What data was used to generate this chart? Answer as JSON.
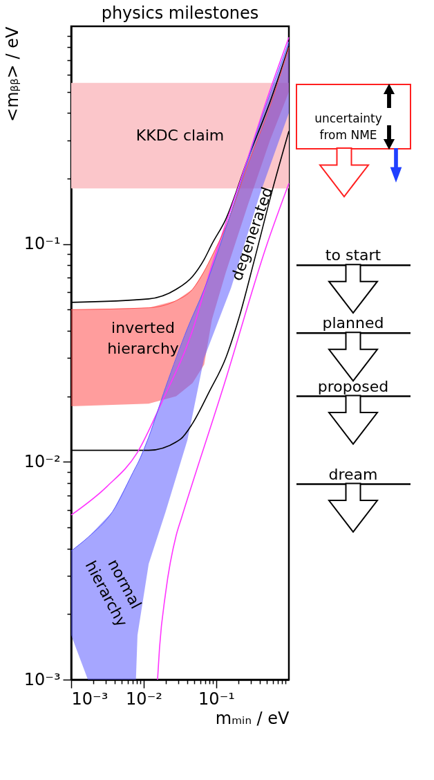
{
  "chart_data": {
    "type": "line",
    "title": "physics milestones",
    "xlabel": "mₘᵢₙ / eV",
    "ylabel": "<mᵦᵦ> / eV",
    "log": "xy",
    "grid": false,
    "xlim": [
      0.001,
      1
    ],
    "ylim": [
      0.001,
      1
    ],
    "xticks": [
      {
        "value": 0.001,
        "label": "10⁻³"
      },
      {
        "value": 0.002,
        "label": null
      },
      {
        "value": 0.003,
        "label": null
      },
      {
        "value": 0.004,
        "label": null
      },
      {
        "value": 0.005,
        "label": null
      },
      {
        "value": 0.006,
        "label": null
      },
      {
        "value": 0.007,
        "label": null
      },
      {
        "value": 0.008,
        "label": null
      },
      {
        "value": 0.009,
        "label": null
      },
      {
        "value": 0.01,
        "label": "10⁻²"
      },
      {
        "value": 0.02,
        "label": null
      },
      {
        "value": 0.03,
        "label": null
      },
      {
        "value": 0.04,
        "label": null
      },
      {
        "value": 0.05,
        "label": null
      },
      {
        "value": 0.06,
        "label": null
      },
      {
        "value": 0.07,
        "label": null
      },
      {
        "value": 0.08,
        "label": null
      },
      {
        "value": 0.09,
        "label": null
      },
      {
        "value": 0.1,
        "label": "10⁻¹"
      },
      {
        "value": 0.2,
        "label": null
      },
      {
        "value": 0.3,
        "label": null
      },
      {
        "value": 0.4,
        "label": null
      },
      {
        "value": 0.5,
        "label": null
      },
      {
        "value": 0.6,
        "label": null
      },
      {
        "value": 0.7,
        "label": null
      },
      {
        "value": 0.8,
        "label": null
      },
      {
        "value": 0.9,
        "label": null
      }
    ],
    "yticks": [
      {
        "value": 0.001,
        "label": "10⁻³"
      },
      {
        "value": 0.002,
        "label": null
      },
      {
        "value": 0.003,
        "label": null
      },
      {
        "value": 0.004,
        "label": null
      },
      {
        "value": 0.005,
        "label": null
      },
      {
        "value": 0.006,
        "label": null
      },
      {
        "value": 0.007,
        "label": null
      },
      {
        "value": 0.008,
        "label": null
      },
      {
        "value": 0.009,
        "label": null
      },
      {
        "value": 0.01,
        "label": "10⁻²"
      },
      {
        "value": 0.02,
        "label": null
      },
      {
        "value": 0.03,
        "label": null
      },
      {
        "value": 0.04,
        "label": null
      },
      {
        "value": 0.05,
        "label": null
      },
      {
        "value": 0.06,
        "label": null
      },
      {
        "value": 0.07,
        "label": null
      },
      {
        "value": 0.08,
        "label": null
      },
      {
        "value": 0.09,
        "label": null
      },
      {
        "value": 0.1,
        "label": "10⁻¹"
      },
      {
        "value": 0.2,
        "label": null
      },
      {
        "value": 0.3,
        "label": null
      },
      {
        "value": 0.4,
        "label": null
      },
      {
        "value": 0.5,
        "label": null
      },
      {
        "value": 0.6,
        "label": null
      },
      {
        "value": 0.7,
        "label": null
      },
      {
        "value": 0.8,
        "label": null
      },
      {
        "value": 0.9,
        "label": null
      }
    ],
    "bands": [
      {
        "axis": "y",
        "from": 0.18,
        "to": 0.55,
        "label": "KKDC claim",
        "color": "#fbc6ca"
      }
    ],
    "series": [
      {
        "color": "#ff4d4d",
        "x": [
          0.001,
          0.0117,
          0.028,
          0.047,
          0.068,
          0.087,
          0.135,
          0.27,
          0.55,
          1
        ],
        "values": [
          0.05,
          0.051,
          0.055,
          0.062,
          0.075,
          0.088,
          0.12,
          0.23,
          0.43,
          0.8
        ],
        "upper": [
          0.05,
          0.051,
          0.055,
          0.062,
          0.075,
          0.088,
          0.12,
          0.23,
          0.43,
          0.8
        ],
        "lower": [
          0.018,
          0.0185,
          0.02,
          0.023,
          0.028,
          0.045,
          0.074,
          0.15,
          0.3,
          0.5
        ]
      },
      {
        "color": "#5c5cff",
        "x": [
          0.001,
          0.0017,
          0.0037,
          0.0078,
          0.0082,
          0.0117,
          0.02,
          0.04,
          0.068,
          0.16,
          0.4,
          1
        ],
        "values": [
          0.0039,
          0.0045,
          0.0059,
          0.0095,
          0.0098,
          0.013,
          0.022,
          0.041,
          0.062,
          0.14,
          0.36,
          0.85
        ],
        "upper": [
          0.0039,
          0.0045,
          0.0059,
          0.0095,
          0.0098,
          0.013,
          0.022,
          0.041,
          0.062,
          0.14,
          0.36,
          0.85
        ],
        "lower": [
          0.0016,
          0.001,
          0.001,
          0.001,
          0.0016,
          0.0034,
          0.0059,
          0.0126,
          0.03,
          0.063,
          0.17,
          0.4
        ]
      },
      {
        "color": "#000000",
        "x": [
          0.001,
          0.0117,
          0.028,
          0.047,
          0.068,
          0.087,
          0.135,
          0.27,
          0.55,
          1
        ],
        "values": [
          0.054,
          0.056,
          0.062,
          0.071,
          0.085,
          0.1,
          0.13,
          0.245,
          0.45,
          0.81
        ]
      },
      {
        "color": "#000000",
        "x": [
          0.001,
          0.0117,
          0.032,
          0.047,
          0.08,
          0.135,
          0.21,
          0.33,
          0.6,
          1
        ],
        "values": [
          0.0113,
          0.0113,
          0.0127,
          0.015,
          0.021,
          0.03,
          0.047,
          0.083,
          0.18,
          0.33
        ]
      },
      {
        "color": "#ff33ff",
        "x": [
          0.001,
          0.0031,
          0.0081,
          0.018,
          0.048,
          0.08,
          0.22,
          0.54,
          1
        ],
        "values": [
          0.0057,
          0.0077,
          0.011,
          0.019,
          0.041,
          0.073,
          0.2,
          0.5,
          0.89
        ]
      },
      {
        "color": "#ff33ff",
        "x": [
          0.0155,
          0.0165,
          0.02,
          0.028,
          0.033,
          0.13,
          0.5,
          1
        ],
        "values": [
          0.001,
          0.0014,
          0.0025,
          0.0046,
          0.0055,
          0.023,
          0.1,
          0.19
        ]
      }
    ],
    "annotations": [
      "inverted\nhierarchy",
      "degenerated",
      "normal\nhierarchy",
      "uncertainty\nfrom NME"
    ],
    "ref_lines": [
      {
        "axis": "y",
        "value": 0.08,
        "label": "to start"
      },
      {
        "axis": "y",
        "value": 0.039,
        "label": "planned"
      },
      {
        "axis": "y",
        "value": 0.02,
        "label": "proposed"
      },
      {
        "axis": "y",
        "value": 0.0079,
        "label": "dream"
      }
    ]
  }
}
